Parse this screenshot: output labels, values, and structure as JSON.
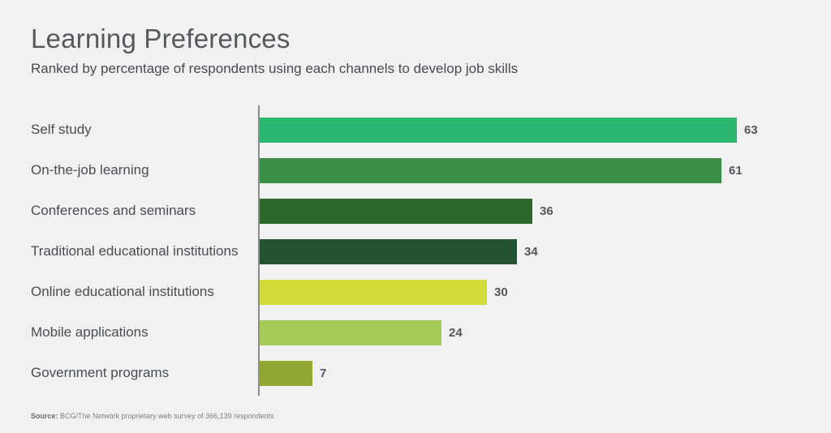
{
  "page": {
    "background": "#f1f1f2"
  },
  "header": {
    "title": "Learning Preferences",
    "subtitle": "Ranked by percentage of respondents using each channels to develop job skills"
  },
  "chart_data": {
    "type": "bar",
    "orientation": "horizontal",
    "title": "Learning Preferences",
    "subtitle": "Ranked by percentage of respondents using each channels to develop job skills",
    "categories": [
      "Self study",
      "On-the-job learning",
      "Conferences and seminars",
      "Traditional educational institutions",
      "Online educational institutions",
      "Mobile applications",
      "Government programs"
    ],
    "values": [
      63,
      61,
      36,
      34,
      30,
      24,
      7
    ],
    "value_labels": [
      "63",
      "61",
      "36",
      "34",
      "30",
      "24",
      "7"
    ],
    "bar_colors": [
      "#2db770",
      "#3a8e45",
      "#2c682b",
      "#25532f",
      "#d1dc3a",
      "#a4cb58",
      "#93a832"
    ],
    "xlim": [
      0,
      63
    ],
    "grid": false,
    "legend": false,
    "axis_line_color": "#8d8d8f",
    "units": "percent of respondents"
  },
  "footer": {
    "source_label": "Source:",
    "source_text": "BCG/The Network proprietary web survey of 366,139 respondents"
  }
}
